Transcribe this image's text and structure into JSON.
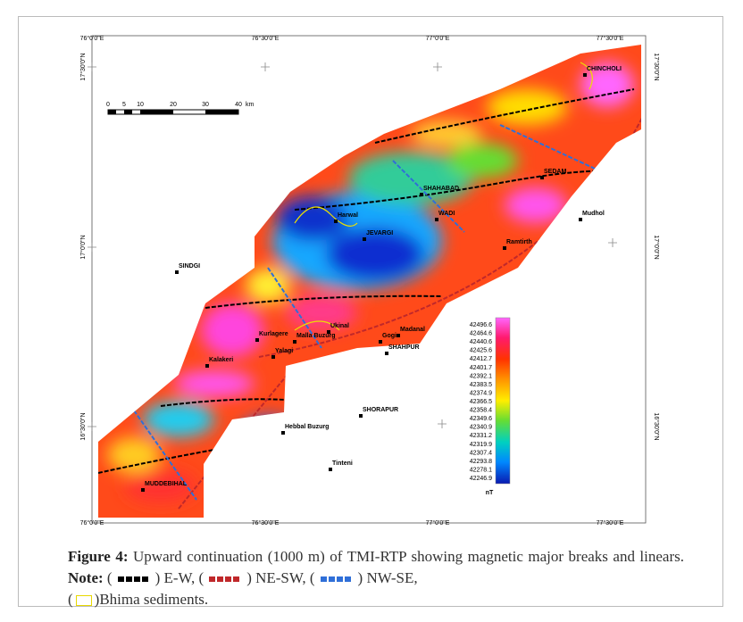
{
  "figure": {
    "lon_labels": [
      "76°0'0\"E",
      "76°30'0\"E",
      "77°0'0\"E",
      "77°30'0\"E"
    ],
    "lat_labels": [
      "17°30'0\"N",
      "17°0'0\"N",
      "16°30'0\"N"
    ],
    "places": [
      "CHINCHOLI",
      "SEDAM",
      "SHAHABAD",
      "WADI",
      "Harwal",
      "JEVARGI",
      "Mudhol",
      "Ramtirth",
      "SINDGI",
      "Ukinal",
      "Kurlagere",
      "Malla Buzurg",
      "Gogi",
      "Madanal",
      "SHAHPUR",
      "Kalakeri",
      "Yalagi",
      "SHORAPUR",
      "Hebbal Buzurg",
      "Tinteni",
      "MUDDEBIHAL"
    ],
    "scale_labels": [
      "0",
      "5",
      "10",
      "20",
      "30",
      "40",
      "km"
    ],
    "colorbar_labels": [
      "42496.6",
      "42464.6",
      "42440.6",
      "42425.6",
      "42412.7",
      "42401.7",
      "42392.1",
      "42383.5",
      "42374.9",
      "42366.5",
      "42358.4",
      "42349.6",
      "42340.9",
      "42331.2",
      "42319.9",
      "42307.4",
      "42293.8",
      "42278.1",
      "42246.9"
    ],
    "colorbar_unit": "nT"
  },
  "caption": {
    "label": "Figure 4:",
    "text": " Upward continuation (1000 m) of TMI-RTP showing magnetic major breaks and linears.",
    "note_label": "Note:",
    "note_parts": [
      " (",
      ") E-W, (",
      ") NE-SW, (",
      ") NW-SE,",
      "(",
      ")Bhima sediments."
    ]
  }
}
